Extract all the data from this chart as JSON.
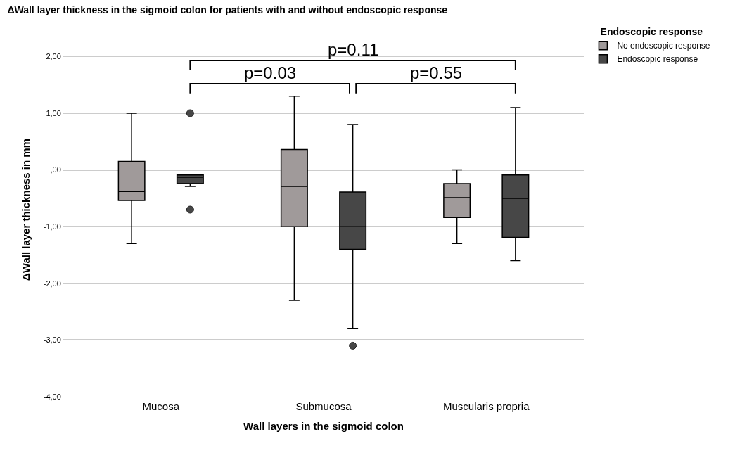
{
  "chart_data": {
    "type": "box",
    "title": "ΔWall layer thickness in the sigmoid colon for patients with and without endoscopic response",
    "xlabel": "Wall layers in the sigmoid colon",
    "ylabel": "ΔWall layer thickness in mm",
    "legend_title": "Endoscopic response",
    "categories": [
      "Mucosa",
      "Submucosa",
      "Muscularis propria"
    ],
    "ylim": [
      -4,
      2.6
    ],
    "yticks": [
      {
        "value": -4,
        "label": "-4,00"
      },
      {
        "value": -3,
        "label": "-3,00"
      },
      {
        "value": -2,
        "label": "-2,00"
      },
      {
        "value": -1,
        "label": "-1,00"
      },
      {
        "value": 0,
        "label": ",00"
      },
      {
        "value": 1,
        "label": "1,00"
      },
      {
        "value": 2,
        "label": "2,00"
      }
    ],
    "grid": "y",
    "legend": "top right",
    "series": [
      {
        "name": "No endoscopic response",
        "color": "#a09a9a",
        "boxes": [
          {
            "low": -1.3,
            "q1": -0.54,
            "median": -0.38,
            "q3": 0.15,
            "high": 1.0
          },
          {
            "low": -2.3,
            "q1": -1.0,
            "median": -0.29,
            "q3": 0.36,
            "high": 1.3
          },
          {
            "low": -1.3,
            "q1": -0.84,
            "median": -0.49,
            "q3": -0.24,
            "high": 0.0
          }
        ]
      },
      {
        "name": "Endoscopic response",
        "color": "#474747",
        "boxes": [
          {
            "low": -0.29,
            "q1": -0.24,
            "median": -0.13,
            "q3": -0.09,
            "high": -0.09,
            "outliers": [
              1.0,
              -0.7
            ]
          },
          {
            "low": -2.8,
            "q1": -1.4,
            "median": -1.0,
            "q3": -0.39,
            "high": 0.8,
            "outliers": [
              -3.1
            ]
          },
          {
            "low": -1.6,
            "q1": -1.19,
            "median": -0.5,
            "q3": -0.09,
            "high": 1.1
          }
        ]
      }
    ],
    "annotations": [
      "p=0.11",
      "p=0.03",
      "p=0.55"
    ]
  }
}
